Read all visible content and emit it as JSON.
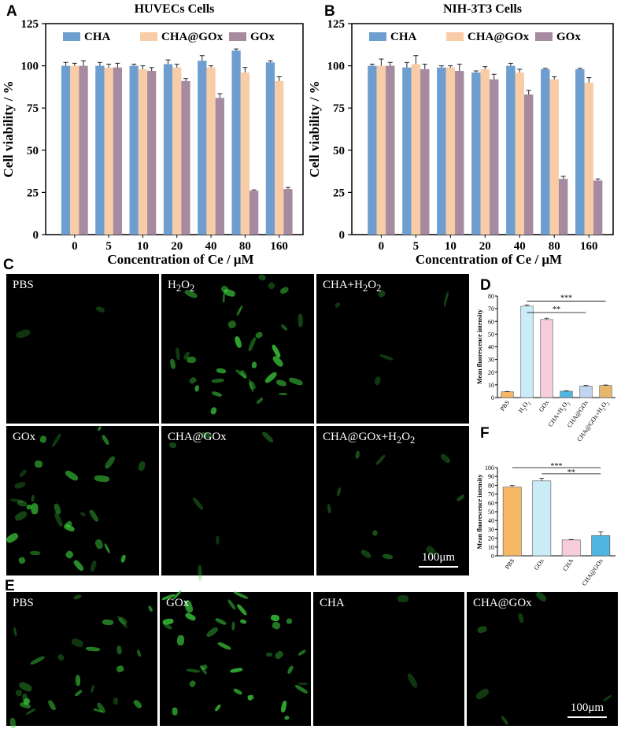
{
  "panel_labels": {
    "a": "A",
    "b": "B",
    "c": "C",
    "d": "D",
    "e": "E",
    "f": "F"
  },
  "chart_data": [
    {
      "id": "A",
      "type": "bar",
      "title": "HUVECs Cells",
      "xlabel": "Concentration of Ce / μM",
      "ylabel": "Cell viability / %",
      "categories": [
        "0",
        "5",
        "10",
        "20",
        "40",
        "80",
        "160"
      ],
      "ylim": [
        0,
        125
      ],
      "yticks": [
        0,
        25,
        50,
        75,
        100,
        125
      ],
      "legend": "top",
      "series": [
        {
          "name": "CHA",
          "color": "#6d9ecf",
          "values": [
            100,
            100,
            100,
            101,
            103,
            109,
            102
          ],
          "err": [
            2,
            2,
            1,
            2.5,
            3,
            1,
            1
          ]
        },
        {
          "name": "CHA@GOx",
          "color": "#f9cca8",
          "values": [
            100,
            99,
            98,
            99,
            99,
            96,
            91
          ],
          "err": [
            1.5,
            2,
            2,
            2,
            1,
            3,
            2.5
          ]
        },
        {
          "name": "GOx",
          "color": "#a68ba0",
          "values": [
            100,
            99,
            97,
            91,
            81,
            26,
            27
          ],
          "err": [
            3,
            2.5,
            2,
            1.5,
            2.5,
            0.5,
            1
          ]
        }
      ]
    },
    {
      "id": "B",
      "type": "bar",
      "title": "NIH-3T3 Cells",
      "xlabel": "Concentration of Ce / μM",
      "ylabel": "Cell viability / %",
      "categories": [
        "0",
        "5",
        "10",
        "20",
        "40",
        "80",
        "160"
      ],
      "ylim": [
        0,
        125
      ],
      "yticks": [
        0,
        25,
        50,
        75,
        100,
        125
      ],
      "legend": "top",
      "series": [
        {
          "name": "CHA",
          "color": "#6d9ecf",
          "values": [
            100,
            99,
            99,
            96,
            100,
            98,
            98
          ],
          "err": [
            1,
            3,
            1,
            1,
            1.5,
            0.5,
            0.5
          ]
        },
        {
          "name": "CHA@GOx",
          "color": "#f9cca8",
          "values": [
            100,
            101,
            99,
            98,
            96,
            92,
            90
          ],
          "err": [
            4,
            5,
            1,
            1.5,
            2,
            1.5,
            3
          ]
        },
        {
          "name": "GOx",
          "color": "#a68ba0",
          "values": [
            100,
            98,
            97,
            92,
            83,
            33,
            32
          ],
          "err": [
            2,
            3,
            4,
            3,
            2.5,
            1.5,
            1
          ]
        }
      ]
    },
    {
      "id": "D",
      "type": "bar",
      "title": "",
      "ylabel": "Mean fluorescence intensity",
      "categories": [
        "PBS",
        "H2O2",
        "GOx",
        "CHA+H2O2",
        "CHA@GOx",
        "CHA@GOx+H2O2"
      ],
      "category_labels": [
        {
          "main": "PBS",
          "sub": ""
        },
        {
          "main": "H",
          "sub": "2",
          "tail": "O",
          "sub2": "2"
        },
        {
          "main": "GOx",
          "sub": ""
        },
        {
          "main": "CHA+H",
          "sub": "2",
          "tail": "O",
          "sub2": "2"
        },
        {
          "main": "CHA@GOx",
          "sub": ""
        },
        {
          "main": "CHA@GOx+H",
          "sub": "2",
          "tail": "O",
          "sub2": "2"
        }
      ],
      "ylim": [
        0,
        80
      ],
      "yticks": [
        0,
        10,
        20,
        30,
        40,
        50,
        60,
        70,
        80
      ],
      "values": [
        4.5,
        72,
        61.5,
        5,
        9,
        9.5
      ],
      "err": [
        0.3,
        1,
        1,
        0.4,
        0.6,
        0.4
      ],
      "colors": [
        "#f6b867",
        "#c9ecf7",
        "#f7cdda",
        "#4fb6e0",
        "#c2d5ef",
        "#e8b86a"
      ],
      "significance": [
        "***",
        "**"
      ]
    },
    {
      "id": "F",
      "type": "bar",
      "title": "",
      "ylabel": "Mean fluorescence intensity",
      "categories": [
        "PBS",
        "GOx",
        "CHA",
        "CHA@GOx"
      ],
      "ylim": [
        0,
        100
      ],
      "yticks": [
        0,
        10,
        20,
        30,
        40,
        50,
        60,
        70,
        80,
        90,
        100
      ],
      "values": [
        78,
        85,
        18,
        23
      ],
      "err": [
        2,
        3,
        0.5,
        4
      ],
      "colors": [
        "#f6b867",
        "#c9ecf7",
        "#f7cdda",
        "#4fb6e0"
      ],
      "significance": [
        "***",
        "**"
      ]
    }
  ],
  "panel_c": {
    "tiles": [
      {
        "label_main": "PBS",
        "label_sub": "",
        "label_tail": "",
        "label_sub2": ""
      },
      {
        "label_main": "H",
        "label_sub": "2",
        "label_tail": "O",
        "label_sub2": "2"
      },
      {
        "label_main": "CHA+H",
        "label_sub": "2",
        "label_tail": "O",
        "label_sub2": "2"
      },
      {
        "label_main": "GOx",
        "label_sub": "",
        "label_tail": "",
        "label_sub2": ""
      },
      {
        "label_main": "CHA@GOx",
        "label_sub": "",
        "label_tail": "",
        "label_sub2": ""
      },
      {
        "label_main": "CHA@GOx+H",
        "label_sub": "2",
        "label_tail": "O",
        "label_sub2": "2"
      }
    ],
    "scalebar": "100μm"
  },
  "panel_e": {
    "tiles": [
      {
        "label_main": "PBS"
      },
      {
        "label_main": "GOx"
      },
      {
        "label_main": "CHA"
      },
      {
        "label_main": "CHA@GOx"
      }
    ],
    "scalebar": "100μm"
  }
}
